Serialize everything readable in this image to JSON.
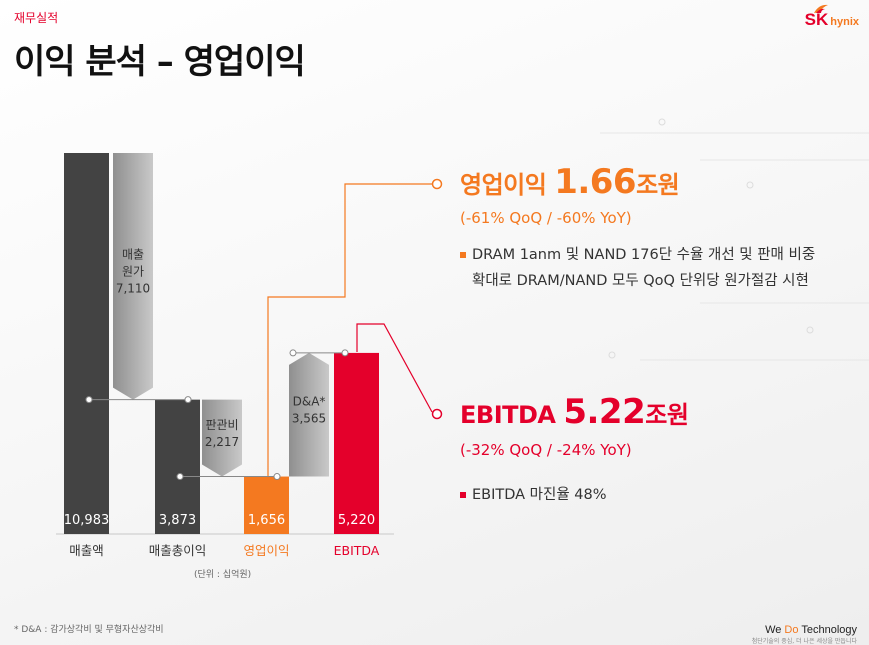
{
  "header": {
    "section_label": "재무실적",
    "title": "이익 분석 – 영업이익"
  },
  "logo": {
    "sk": "SK",
    "hynix": "hynix"
  },
  "colors": {
    "dark_bar": "#434343",
    "gray_bar": "#a8a8a8",
    "orange": "#f47920",
    "red": "#e4002b"
  },
  "chart_data": {
    "type": "bar",
    "subtype": "waterfall",
    "unit_label": "(단위 : 십억원)",
    "categories": [
      "매출액",
      "매출총이익",
      "영업이익",
      "EBITDA"
    ],
    "values": [
      10983,
      3873,
      1656,
      5220
    ],
    "value_labels": [
      "10,983",
      "3,873",
      "1,656",
      "5,220"
    ],
    "deductions": [
      {
        "label_lines": [
          "매출",
          "원가",
          "7,110"
        ],
        "value": 7110,
        "from": 10983,
        "to": 3873
      },
      {
        "label_lines": [
          "판관비",
          "2,217"
        ],
        "value": 2217,
        "from": 3873,
        "to": 1656
      }
    ],
    "additions": [
      {
        "label_lines": [
          "D&A*",
          "3,565"
        ],
        "value": 3565,
        "from": 1656,
        "to": 5220
      }
    ],
    "ylim": [
      0,
      10983
    ]
  },
  "operating_profit": {
    "name": "영업이익",
    "value": "1.66",
    "unit": "조원",
    "change": "(-61% QoQ / -60% YoY)",
    "bullet_line1": "DRAM 1anm 및 NAND 176단 수율 개선 및 판매 비중",
    "bullet_line2": "확대로 DRAM/NAND 모두 QoQ 단위당 원가절감 시현"
  },
  "ebitda": {
    "name": "EBITDA",
    "value": "5.22",
    "unit": "조원",
    "change": "(-32% QoQ / -24% YoY)",
    "bullet": "EBITDA 마진율 48%"
  },
  "footnote": "* D&A : 감가상각비 및 무형자산상각비",
  "tagline": {
    "we": "We ",
    "do": "Do",
    "tech": " Technology",
    "sub": "첨단기술의 중심, 더 나은 세상을 만듭니다"
  }
}
